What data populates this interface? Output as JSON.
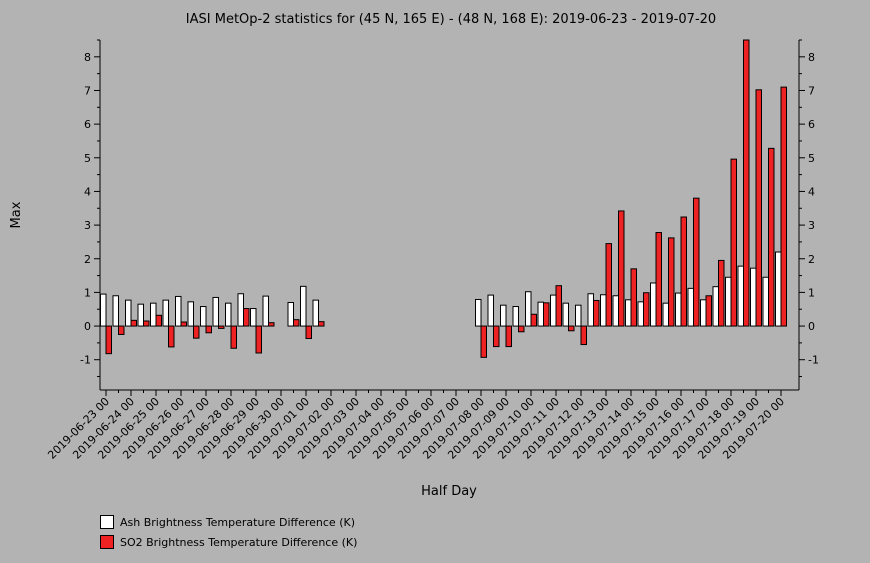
{
  "chart_data": {
    "type": "bar",
    "title": "IASI MetOp-2 statistics for (45 N, 165 E) - (48 N, 168 E): 2019-06-23 - 2019-07-20",
    "xlabel": "Half Day",
    "ylabel": "Max",
    "ylim": [
      -1.9,
      8.5
    ],
    "y_ticks": [
      -1,
      0,
      1,
      2,
      3,
      4,
      5,
      6,
      7,
      8
    ],
    "x_ticks": [
      "2019-06-23 00",
      "2019-06-24 00",
      "2019-06-25 00",
      "2019-06-26 00",
      "2019-06-27 00",
      "2019-06-28 00",
      "2019-06-29 00",
      "2019-06-30 00",
      "2019-07-01 00",
      "2019-07-02 00",
      "2019-07-03 00",
      "2019-07-04 00",
      "2019-07-05 00",
      "2019-07-06 00",
      "2019-07-07 00",
      "2019-07-08 00",
      "2019-07-09 00",
      "2019-07-10 00",
      "2019-07-11 00",
      "2019-07-12 00",
      "2019-07-13 00",
      "2019-07-14 00",
      "2019-07-15 00",
      "2019-07-16 00",
      "2019-07-17 00",
      "2019-07-18 00",
      "2019-07-19 00",
      "2019-07-20 00"
    ],
    "slots": [
      "2019-06-23 00",
      "2019-06-23 12",
      "2019-06-24 00",
      "2019-06-24 12",
      "2019-06-25 00",
      "2019-06-25 12",
      "2019-06-26 00",
      "2019-06-26 12",
      "2019-06-27 00",
      "2019-06-27 12",
      "2019-06-28 00",
      "2019-06-28 12",
      "2019-06-29 00",
      "2019-06-29 12",
      "2019-06-30 00",
      "2019-06-30 12",
      "2019-07-01 00",
      "2019-07-01 12",
      "2019-07-02 00",
      "2019-07-02 12",
      "2019-07-03 00",
      "2019-07-03 12",
      "2019-07-04 00",
      "2019-07-04 12",
      "2019-07-05 00",
      "2019-07-05 12",
      "2019-07-06 00",
      "2019-07-06 12",
      "2019-07-07 00",
      "2019-07-07 12",
      "2019-07-08 00",
      "2019-07-08 12",
      "2019-07-09 00",
      "2019-07-09 12",
      "2019-07-10 00",
      "2019-07-10 12",
      "2019-07-11 00",
      "2019-07-11 12",
      "2019-07-12 00",
      "2019-07-12 12",
      "2019-07-13 00",
      "2019-07-13 12",
      "2019-07-14 00",
      "2019-07-14 12",
      "2019-07-15 00",
      "2019-07-15 12",
      "2019-07-16 00",
      "2019-07-16 12",
      "2019-07-17 00",
      "2019-07-17 12",
      "2019-07-18 00",
      "2019-07-18 12",
      "2019-07-19 00",
      "2019-07-19 12",
      "2019-07-20 00"
    ],
    "series": [
      {
        "name": "Ash Brightness Temperature Difference (K)",
        "color": "#ffffff",
        "values": [
          0.95,
          0.9,
          0.77,
          0.65,
          0.68,
          0.77,
          0.88,
          0.72,
          0.58,
          0.85,
          0.68,
          0.96,
          0.52,
          0.89,
          null,
          0.7,
          1.18,
          0.77,
          null,
          null,
          null,
          null,
          null,
          null,
          null,
          null,
          null,
          null,
          null,
          null,
          0.79,
          0.92,
          0.62,
          0.58,
          1.02,
          0.71,
          0.92,
          0.68,
          0.62,
          0.96,
          0.93,
          0.9,
          0.78,
          0.72,
          1.28,
          0.68,
          0.98,
          1.12,
          0.78,
          1.17,
          1.45,
          1.78,
          1.72,
          1.45,
          2.2
        ]
      },
      {
        "name": "SO2 Brightness Temperature Difference (K)",
        "color": "#ee2222",
        "values": [
          -0.82,
          -0.25,
          0.17,
          0.15,
          0.32,
          -0.62,
          0.12,
          -0.36,
          -0.2,
          -0.07,
          -0.66,
          0.52,
          -0.8,
          0.1,
          null,
          0.19,
          -0.37,
          0.13,
          null,
          null,
          null,
          null,
          null,
          null,
          null,
          null,
          null,
          null,
          null,
          null,
          -0.93,
          -0.61,
          -0.61,
          -0.17,
          0.35,
          0.69,
          1.2,
          -0.14,
          -0.55,
          0.76,
          2.45,
          3.42,
          1.7,
          0.99,
          2.78,
          2.62,
          3.24,
          3.8,
          0.9,
          1.95,
          4.96,
          8.52,
          7.02,
          5.28,
          7.1
        ]
      }
    ],
    "legend": "bottom-left"
  }
}
